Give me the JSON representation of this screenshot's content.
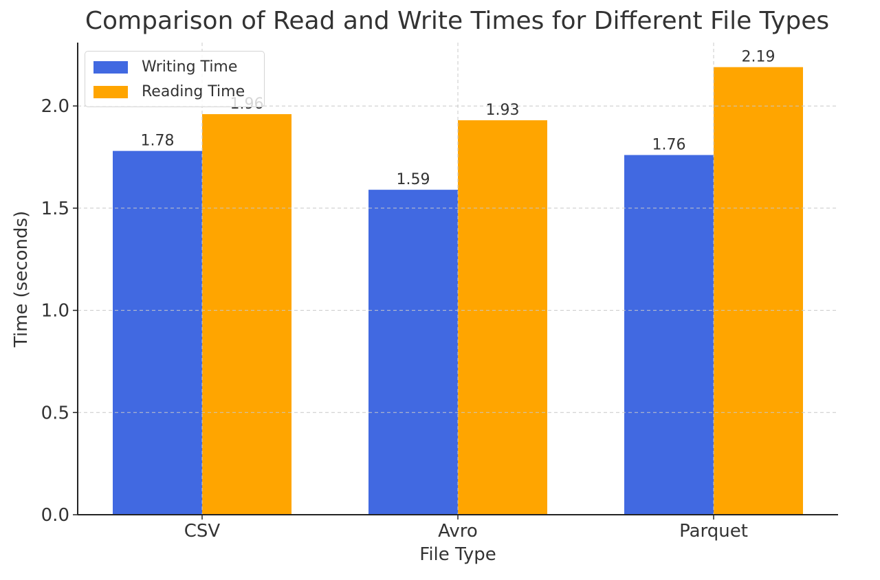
{
  "colors": {
    "writing": "#4169E1",
    "reading": "#FFA500",
    "grid": "#c8c8c8",
    "axis": "#222222",
    "text": "#333333"
  },
  "chart_data": {
    "type": "bar",
    "title": "Comparison of Read and Write Times for Different File Types",
    "xlabel": "File Type",
    "ylabel": "Time (seconds)",
    "categories": [
      "CSV",
      "Avro",
      "Parquet"
    ],
    "series": [
      {
        "name": "Writing Time",
        "values": [
          1.78,
          1.59,
          1.76
        ],
        "labels": [
          "1.78",
          "1.59",
          "1.76"
        ]
      },
      {
        "name": "Reading Time",
        "values": [
          1.96,
          1.93,
          2.19
        ],
        "labels": [
          "1.96",
          "1.93",
          "2.19"
        ]
      }
    ],
    "ylim": [
      0,
      2.31
    ],
    "yticks": [
      0.0,
      0.5,
      1.0,
      1.5,
      2.0
    ],
    "ytick_labels": [
      "0.0",
      "0.5",
      "1.0",
      "1.5",
      "2.0"
    ],
    "grid": true,
    "legend_position": "top-left"
  }
}
